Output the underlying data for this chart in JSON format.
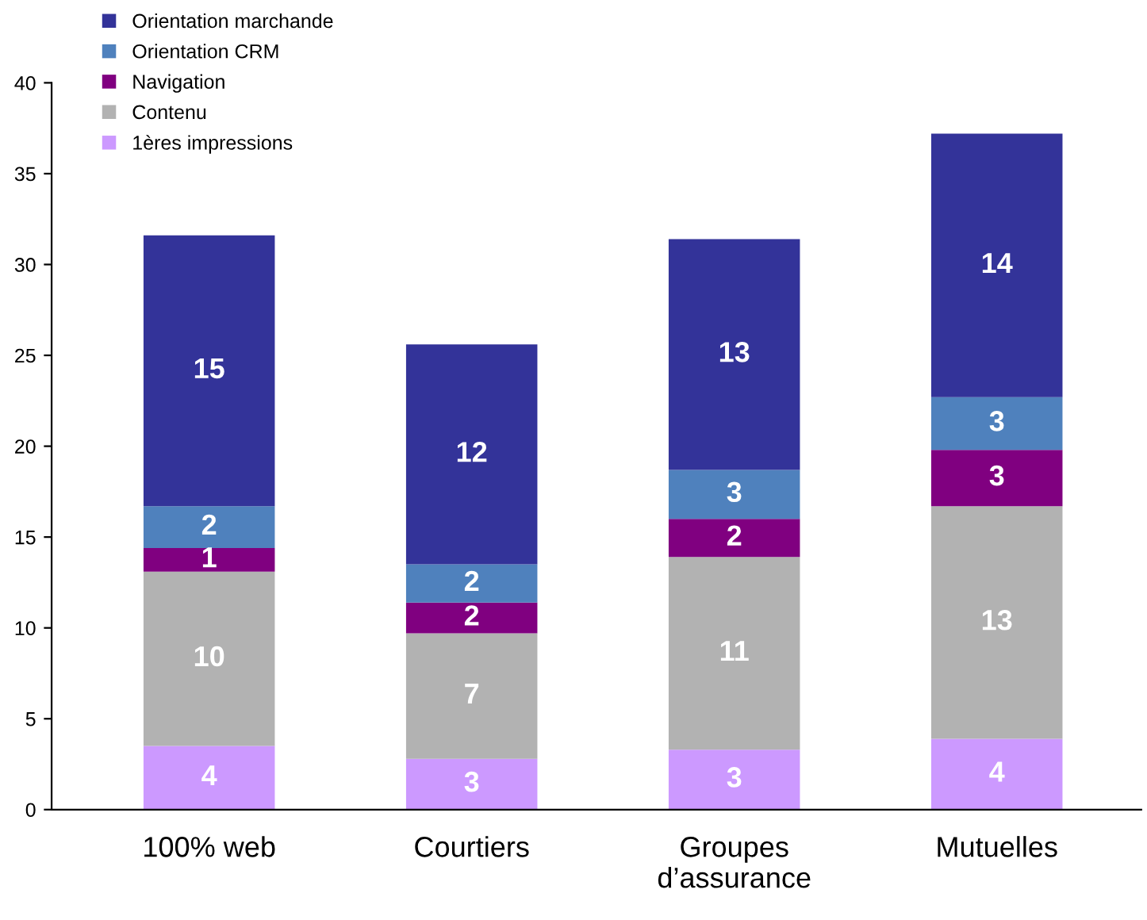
{
  "chart_data": {
    "type": "bar",
    "stacked": true,
    "categories": [
      "100% web",
      "Courtiers",
      "Groupes\nd’assurance",
      "Mutuelles"
    ],
    "series": [
      {
        "name": "1ères impressions",
        "color": "#cc99ff",
        "values": [
          3.5,
          2.8,
          3.3,
          3.9
        ],
        "value_labels": [
          "4",
          "3",
          "3",
          "4"
        ]
      },
      {
        "name": "Contenu",
        "color": "#b2b2b2",
        "values": [
          9.6,
          6.9,
          10.6,
          12.8
        ],
        "value_labels": [
          "10",
          "7",
          "11",
          "13"
        ]
      },
      {
        "name": "Navigation",
        "color": "#800080",
        "values": [
          1.3,
          1.7,
          2.1,
          3.1
        ],
        "value_labels": [
          "1",
          "2",
          "2",
          "3"
        ]
      },
      {
        "name": "Orientation CRM",
        "color": "#4f81bd",
        "values": [
          2.3,
          2.1,
          2.7,
          2.9
        ],
        "value_labels": [
          "2",
          "2",
          "3",
          "3"
        ]
      },
      {
        "name": "Orientation marchande",
        "color": "#333399",
        "values": [
          14.9,
          12.1,
          12.7,
          14.5
        ],
        "value_labels": [
          "15",
          "12",
          "13",
          "14"
        ]
      }
    ],
    "ylim": [
      0,
      40
    ],
    "yticks": [
      0,
      5,
      10,
      15,
      20,
      25,
      30,
      35,
      40
    ],
    "grid": false,
    "legend": "top left"
  }
}
